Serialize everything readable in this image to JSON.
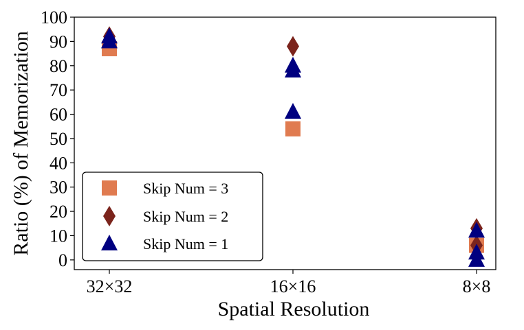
{
  "chart_data": {
    "type": "scatter",
    "xlabel": "Spatial Resolution",
    "ylabel": "Ratio (%) of Memorization",
    "categories": [
      "32×32",
      "16×16",
      "8×8"
    ],
    "ylim": [
      -4,
      100
    ],
    "yticks": [
      0,
      10,
      20,
      30,
      40,
      50,
      60,
      70,
      80,
      90,
      100
    ],
    "grid": false,
    "legend_position": "lower-left",
    "series": [
      {
        "name": "Skip Num = 3",
        "marker": "square",
        "color": "#E07B50",
        "points": [
          {
            "x": "32×32",
            "y": 87
          },
          {
            "x": "16×16",
            "y": 54
          },
          {
            "x": "8×8",
            "y": 6
          }
        ]
      },
      {
        "name": "Skip Num = 2",
        "marker": "diamond",
        "color": "#7B241C",
        "points": [
          {
            "x": "32×32",
            "y": 92
          },
          {
            "x": "16×16",
            "y": 88
          },
          {
            "x": "8×8",
            "y": 13
          },
          {
            "x": "8×8",
            "y": 6
          }
        ]
      },
      {
        "name": "Skip Num = 1",
        "marker": "triangle",
        "color": "#000080",
        "points": [
          {
            "x": "32×32",
            "y": 92
          },
          {
            "x": "32×32",
            "y": 90
          },
          {
            "x": "16×16",
            "y": 80
          },
          {
            "x": "16×16",
            "y": 78
          },
          {
            "x": "16×16",
            "y": 61
          },
          {
            "x": "8×8",
            "y": 12
          },
          {
            "x": "8×8",
            "y": 3
          },
          {
            "x": "8×8",
            "y": 0
          }
        ]
      }
    ]
  }
}
